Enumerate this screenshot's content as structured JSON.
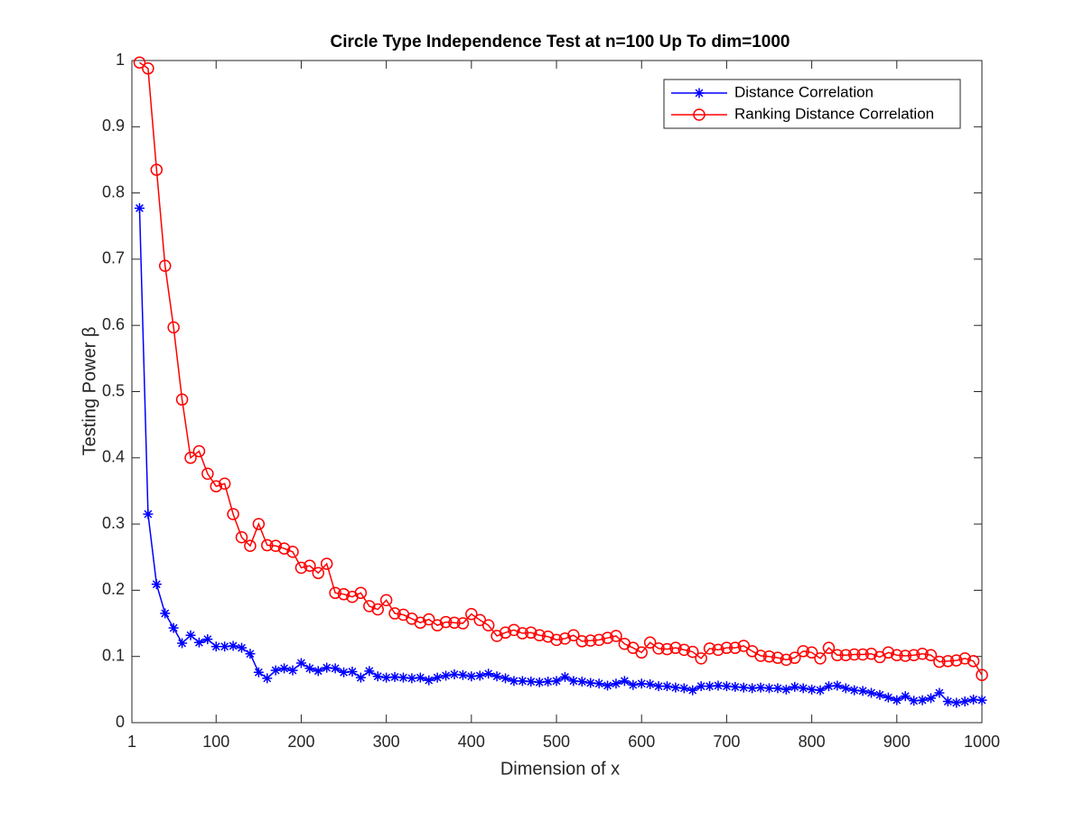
{
  "chart_data": {
    "type": "line",
    "title": "Circle Type Independence Test at n=100 Up To dim=1000",
    "x_label": "Dimension of x",
    "y_label": "Testing Power β",
    "x": [
      10,
      20,
      30,
      40,
      50,
      60,
      70,
      80,
      90,
      100,
      110,
      120,
      130,
      140,
      150,
      160,
      170,
      180,
      190,
      200,
      210,
      220,
      230,
      240,
      250,
      260,
      270,
      280,
      290,
      300,
      310,
      320,
      330,
      340,
      350,
      360,
      370,
      380,
      390,
      400,
      410,
      420,
      430,
      440,
      450,
      460,
      470,
      480,
      490,
      500,
      510,
      520,
      530,
      540,
      550,
      560,
      570,
      580,
      590,
      600,
      610,
      620,
      630,
      640,
      650,
      660,
      670,
      680,
      690,
      700,
      710,
      720,
      730,
      740,
      750,
      760,
      770,
      780,
      790,
      800,
      810,
      820,
      830,
      840,
      850,
      860,
      870,
      880,
      890,
      900,
      910,
      920,
      930,
      940,
      950,
      960,
      970,
      980,
      990,
      1000
    ],
    "series": [
      {
        "name": "Distance Correlation",
        "color": "#0000ff",
        "marker": "asterisk",
        "values": [
          0.777,
          0.315,
          0.209,
          0.165,
          0.143,
          0.12,
          0.132,
          0.121,
          0.126,
          0.115,
          0.115,
          0.116,
          0.113,
          0.104,
          0.076,
          0.067,
          0.079,
          0.082,
          0.079,
          0.09,
          0.082,
          0.078,
          0.083,
          0.082,
          0.076,
          0.077,
          0.068,
          0.078,
          0.07,
          0.068,
          0.069,
          0.068,
          0.067,
          0.068,
          0.064,
          0.068,
          0.071,
          0.073,
          0.072,
          0.07,
          0.071,
          0.074,
          0.07,
          0.067,
          0.063,
          0.063,
          0.062,
          0.061,
          0.062,
          0.063,
          0.069,
          0.063,
          0.062,
          0.06,
          0.059,
          0.056,
          0.059,
          0.063,
          0.057,
          0.059,
          0.058,
          0.055,
          0.055,
          0.053,
          0.052,
          0.049,
          0.055,
          0.055,
          0.056,
          0.055,
          0.054,
          0.053,
          0.052,
          0.053,
          0.052,
          0.052,
          0.05,
          0.054,
          0.052,
          0.05,
          0.049,
          0.055,
          0.056,
          0.052,
          0.049,
          0.048,
          0.045,
          0.042,
          0.038,
          0.034,
          0.04,
          0.033,
          0.034,
          0.037,
          0.045,
          0.032,
          0.03,
          0.032,
          0.035,
          0.034
        ]
      },
      {
        "name": "Ranking Distance Correlation",
        "color": "#ff0000",
        "marker": "circle",
        "values": [
          0.997,
          0.988,
          0.835,
          0.69,
          0.597,
          0.488,
          0.4,
          0.41,
          0.376,
          0.357,
          0.361,
          0.315,
          0.28,
          0.267,
          0.3,
          0.268,
          0.267,
          0.263,
          0.258,
          0.234,
          0.237,
          0.226,
          0.24,
          0.196,
          0.194,
          0.19,
          0.196,
          0.176,
          0.171,
          0.185,
          0.165,
          0.163,
          0.157,
          0.151,
          0.156,
          0.147,
          0.152,
          0.151,
          0.15,
          0.164,
          0.155,
          0.147,
          0.131,
          0.136,
          0.14,
          0.135,
          0.136,
          0.132,
          0.13,
          0.125,
          0.127,
          0.132,
          0.123,
          0.124,
          0.125,
          0.128,
          0.131,
          0.119,
          0.113,
          0.106,
          0.121,
          0.112,
          0.111,
          0.113,
          0.11,
          0.107,
          0.097,
          0.112,
          0.11,
          0.113,
          0.113,
          0.116,
          0.108,
          0.101,
          0.1,
          0.098,
          0.095,
          0.098,
          0.108,
          0.106,
          0.097,
          0.113,
          0.102,
          0.102,
          0.103,
          0.103,
          0.104,
          0.099,
          0.106,
          0.102,
          0.101,
          0.102,
          0.104,
          0.102,
          0.092,
          0.093,
          0.094,
          0.097,
          0.093,
          0.072
        ]
      }
    ],
    "xlim": [
      1,
      1000
    ],
    "xticks": [
      1,
      100,
      200,
      300,
      400,
      500,
      600,
      700,
      800,
      900,
      1000
    ],
    "ylim": [
      0,
      1
    ],
    "yticks": [
      0,
      0.1,
      0.2,
      0.3,
      0.4,
      0.5,
      0.6,
      0.7,
      0.8,
      0.9,
      1
    ],
    "grid": false,
    "legend": "upper right"
  }
}
